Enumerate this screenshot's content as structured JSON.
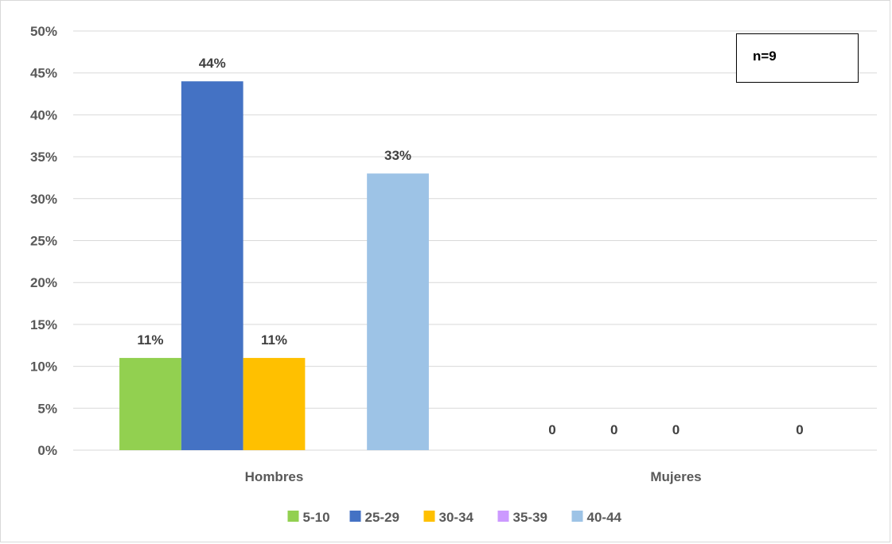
{
  "chart_data": {
    "type": "bar",
    "title": "",
    "xlabel": "",
    "ylabel": "",
    "categories": [
      "Hombres",
      "Mujeres"
    ],
    "series": [
      {
        "name": "5-10",
        "color": "#92d050",
        "values": [
          0.11,
          0
        ],
        "labels": [
          "11%",
          "0"
        ]
      },
      {
        "name": "25-29",
        "color": "#4472c4",
        "values": [
          0.44,
          0
        ],
        "labels": [
          "44%",
          "0"
        ]
      },
      {
        "name": "30-34",
        "color": "#ffc000",
        "values": [
          0.11,
          0
        ],
        "labels": [
          "11%",
          "0"
        ]
      },
      {
        "name": "35-39",
        "color": "#cc99ff",
        "values": [
          0,
          0
        ],
        "labels": [
          "",
          ""
        ]
      },
      {
        "name": "40-44",
        "color": "#9dc3e6",
        "values": [
          0.33,
          0
        ],
        "labels": [
          "33%",
          "0"
        ]
      }
    ],
    "ylim": [
      0,
      0.5
    ],
    "yticks": [
      "0%",
      "5%",
      "10%",
      "15%",
      "20%",
      "25%",
      "30%",
      "35%",
      "40%",
      "45%",
      "50%"
    ],
    "grid": true,
    "legend_position": "bottom",
    "annotation": "n=9"
  }
}
